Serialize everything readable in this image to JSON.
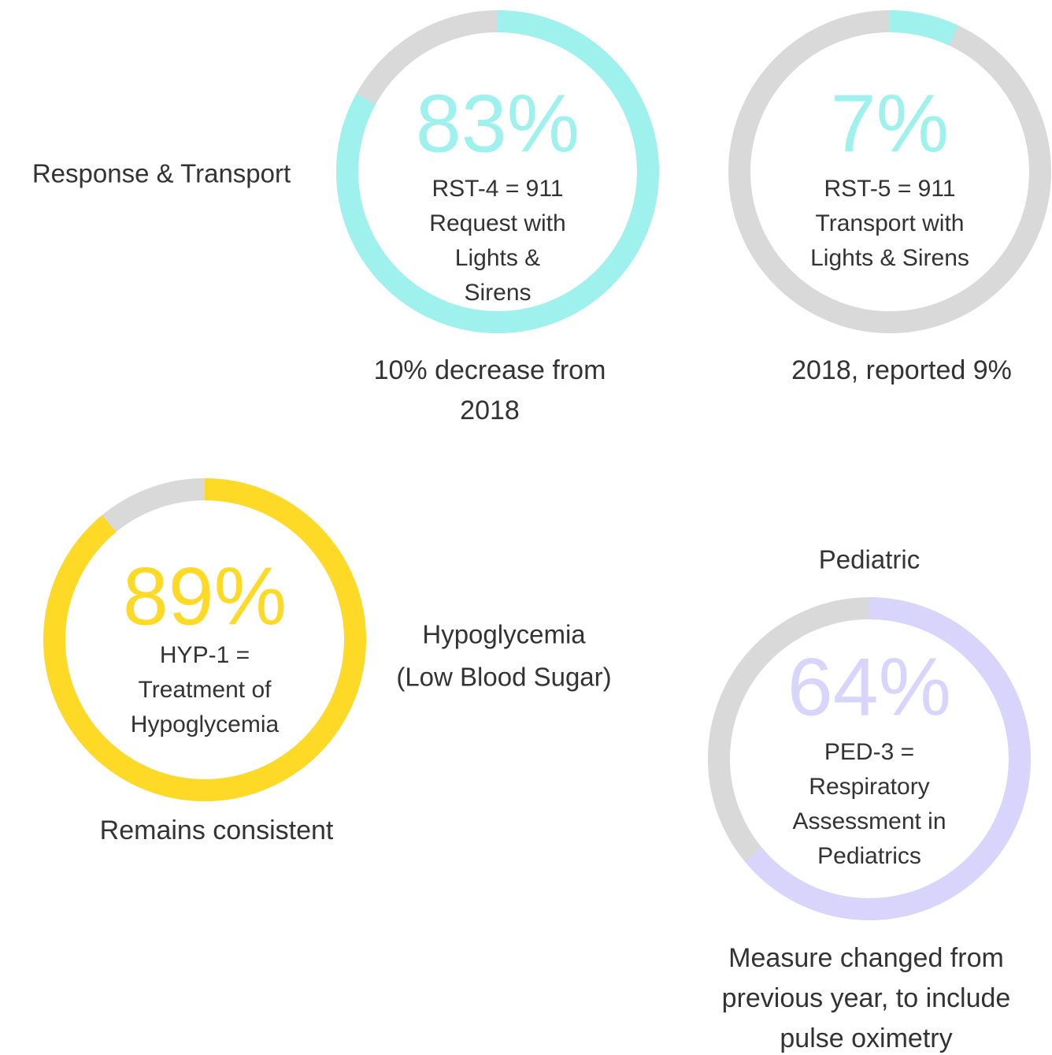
{
  "chart_data": [
    {
      "type": "donut",
      "values": [
        83
      ],
      "value_labels": [
        "83%"
      ],
      "color": "#9ef1ec",
      "description": [
        "RST-4 = 911",
        "Request with",
        "Lights &",
        "Sirens"
      ],
      "note": [
        "10% decrease from",
        "2018"
      ]
    },
    {
      "type": "donut",
      "values": [
        7
      ],
      "value_labels": [
        "7%"
      ],
      "color": "#9ef1ec",
      "description": [
        "RST-5 = 911",
        "Transport with",
        "Lights & Sirens"
      ],
      "note": [
        "2018, reported 9%"
      ]
    },
    {
      "type": "donut",
      "values": [
        89
      ],
      "value_labels": [
        "89%"
      ],
      "color": "#fed925",
      "description": [
        "HYP-1 =",
        "Treatment of",
        "Hypoglycemia"
      ],
      "note": [
        "Remains consistent"
      ]
    },
    {
      "type": "donut",
      "values": [
        64
      ],
      "value_labels": [
        "64%"
      ],
      "color": "#d9d4fb",
      "description": [
        "PED-3 =",
        "Respiratory",
        "Assessment in",
        "Pediatrics"
      ],
      "note": [
        "Measure changed from",
        "previous year, to include",
        "pulse oximetry"
      ]
    }
  ],
  "headings": [
    {
      "lines": [
        "Response & Transport"
      ]
    },
    {
      "lines": [
        "Hypoglycemia",
        "(Low Blood Sugar)"
      ]
    },
    {
      "lines": [
        "Pediatric"
      ]
    }
  ]
}
